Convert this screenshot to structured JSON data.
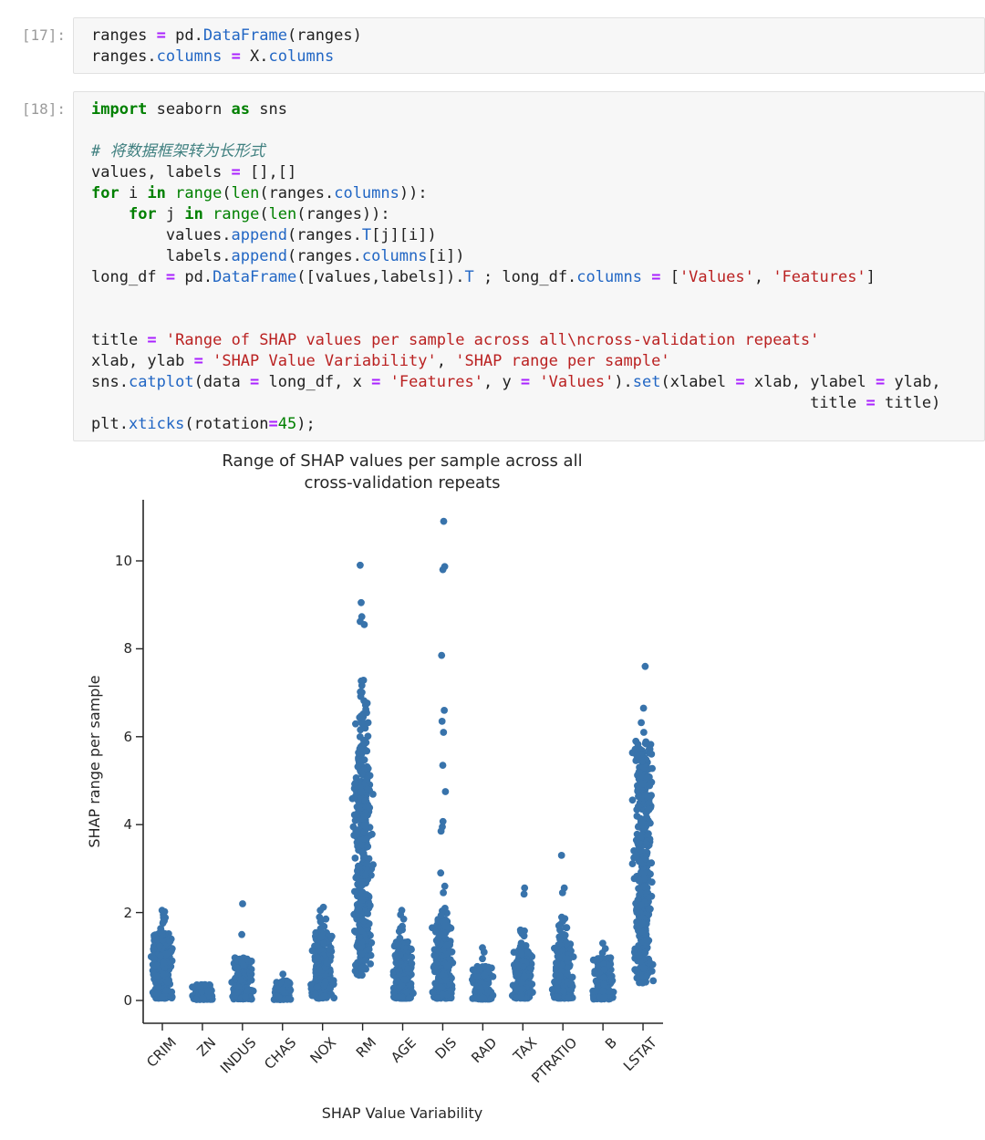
{
  "cells": [
    {
      "prompt": "[17]:",
      "lines": [
        [
          [
            "t",
            "ranges "
          ],
          [
            "o",
            "="
          ],
          [
            "t",
            " pd."
          ],
          [
            "p",
            "DataFrame"
          ],
          [
            "t",
            "(ranges)"
          ]
        ],
        [
          [
            "t",
            "ranges."
          ],
          [
            "p",
            "columns"
          ],
          [
            "t",
            " "
          ],
          [
            "o",
            "="
          ],
          [
            "t",
            " X."
          ],
          [
            "p",
            "columns"
          ]
        ]
      ]
    },
    {
      "prompt": "[18]:",
      "lines": [
        [
          [
            "k",
            "import"
          ],
          [
            "t",
            " seaborn "
          ],
          [
            "k",
            "as"
          ],
          [
            "t",
            " sns"
          ]
        ],
        [],
        [
          [
            "c",
            "# 将数据框架转为长形式"
          ]
        ],
        [
          [
            "t",
            "values, labels "
          ],
          [
            "o",
            "="
          ],
          [
            "t",
            " [],[]"
          ]
        ],
        [
          [
            "k",
            "for"
          ],
          [
            "t",
            " i "
          ],
          [
            "k",
            "in"
          ],
          [
            "t",
            " "
          ],
          [
            "b",
            "range"
          ],
          [
            "t",
            "("
          ],
          [
            "b",
            "len"
          ],
          [
            "t",
            "(ranges."
          ],
          [
            "p",
            "columns"
          ],
          [
            "t",
            ")):"
          ]
        ],
        [
          [
            "t",
            "    "
          ],
          [
            "k",
            "for"
          ],
          [
            "t",
            " j "
          ],
          [
            "k",
            "in"
          ],
          [
            "t",
            " "
          ],
          [
            "b",
            "range"
          ],
          [
            "t",
            "("
          ],
          [
            "b",
            "len"
          ],
          [
            "t",
            "(ranges)):"
          ]
        ],
        [
          [
            "t",
            "        values."
          ],
          [
            "p",
            "append"
          ],
          [
            "t",
            "(ranges."
          ],
          [
            "p",
            "T"
          ],
          [
            "t",
            "[j][i])"
          ]
        ],
        [
          [
            "t",
            "        labels."
          ],
          [
            "p",
            "append"
          ],
          [
            "t",
            "(ranges."
          ],
          [
            "p",
            "columns"
          ],
          [
            "t",
            "[i])"
          ]
        ],
        [
          [
            "t",
            "long_df "
          ],
          [
            "o",
            "="
          ],
          [
            "t",
            " pd."
          ],
          [
            "p",
            "DataFrame"
          ],
          [
            "t",
            "([values,labels])."
          ],
          [
            "p",
            "T"
          ],
          [
            "t",
            " ; long_df."
          ],
          [
            "p",
            "columns"
          ],
          [
            "t",
            " "
          ],
          [
            "o",
            "="
          ],
          [
            "t",
            " ["
          ],
          [
            "s",
            "'Values'"
          ],
          [
            "t",
            ", "
          ],
          [
            "s",
            "'Features'"
          ],
          [
            "t",
            "]"
          ]
        ],
        [],
        [],
        [
          [
            "t",
            "title "
          ],
          [
            "o",
            "="
          ],
          [
            "t",
            " "
          ],
          [
            "s",
            "'Range of SHAP values per sample across all\\ncross-validation repeats'"
          ]
        ],
        [
          [
            "t",
            "xlab, ylab "
          ],
          [
            "o",
            "="
          ],
          [
            "t",
            " "
          ],
          [
            "s",
            "'SHAP Value Variability'"
          ],
          [
            "t",
            ", "
          ],
          [
            "s",
            "'SHAP range per sample'"
          ]
        ],
        [
          [
            "t",
            "sns."
          ],
          [
            "p",
            "catplot"
          ],
          [
            "t",
            "(data "
          ],
          [
            "o",
            "="
          ],
          [
            "t",
            " long_df, x "
          ],
          [
            "o",
            "="
          ],
          [
            "t",
            " "
          ],
          [
            "s",
            "'Features'"
          ],
          [
            "t",
            ", y "
          ],
          [
            "o",
            "="
          ],
          [
            "t",
            " "
          ],
          [
            "s",
            "'Values'"
          ],
          [
            "t",
            ")."
          ],
          [
            "p",
            "set"
          ],
          [
            "t",
            "(xlabel "
          ],
          [
            "o",
            "="
          ],
          [
            "t",
            " xlab, ylabel "
          ],
          [
            "o",
            "="
          ],
          [
            "t",
            " ylab,"
          ]
        ],
        [
          [
            "t",
            "                                                                             title "
          ],
          [
            "o",
            "="
          ],
          [
            "t",
            " title)"
          ]
        ],
        [
          [
            "t",
            "plt."
          ],
          [
            "p",
            "xticks"
          ],
          [
            "t",
            "(rotation"
          ],
          [
            "o",
            "="
          ],
          [
            "n",
            "45"
          ],
          [
            "t",
            ");"
          ]
        ]
      ]
    }
  ],
  "chart_data": {
    "type": "strip",
    "title": "Range of SHAP values per sample across all\ncross-validation repeats",
    "title_lines": [
      "Range of SHAP values per sample across all",
      "cross-validation repeats"
    ],
    "xlabel": "SHAP Value Variability",
    "ylabel": "SHAP range per sample",
    "ylim": [
      -0.55,
      11.45
    ],
    "yticks": [
      0,
      2,
      4,
      6,
      8,
      10
    ],
    "grid": false,
    "legend": "none",
    "dot_color": "#3873ab",
    "axis_color": "#262626",
    "categories": [
      {
        "label": "CRIM",
        "min": 0.05,
        "max": 2.05,
        "clusters": [
          {
            "lo": 0.05,
            "hi": 1.55,
            "n": 320,
            "pw": 1.5,
            "jit": 11
          },
          {
            "lo": 1.55,
            "hi": 1.9,
            "n": 7,
            "pw": 1,
            "jit": 5
          }
        ],
        "outliers": [
          1.95,
          2.02,
          2.05
        ]
      },
      {
        "label": "ZN",
        "min": 0.02,
        "max": 0.36,
        "clusters": [
          {
            "lo": 0.02,
            "hi": 0.36,
            "n": 140,
            "pw": 1.4,
            "jit": 10
          }
        ],
        "outliers": []
      },
      {
        "label": "INDUS",
        "min": 0.03,
        "max": 2.2,
        "clusters": [
          {
            "lo": 0.03,
            "hi": 0.97,
            "n": 240,
            "pw": 1.4,
            "jit": 11
          }
        ],
        "outliers": [
          1.5,
          2.2
        ]
      },
      {
        "label": "CHAS",
        "min": 0.02,
        "max": 0.6,
        "clusters": [
          {
            "lo": 0.02,
            "hi": 0.45,
            "n": 120,
            "pw": 1.4,
            "jit": 9
          }
        ],
        "outliers": [
          0.6
        ]
      },
      {
        "label": "NOX",
        "min": 0.05,
        "max": 2.12,
        "clusters": [
          {
            "lo": 0.05,
            "hi": 1.55,
            "n": 300,
            "pw": 1.4,
            "jit": 11
          },
          {
            "lo": 1.6,
            "hi": 1.95,
            "n": 6,
            "pw": 1,
            "jit": 5
          }
        ],
        "outliers": [
          2.05,
          2.12
        ]
      },
      {
        "label": "RM",
        "min": 0.55,
        "max": 9.9,
        "clusters": [
          {
            "lo": 0.55,
            "hi": 5.6,
            "n": 380,
            "pw": 1.05,
            "jit": 10
          },
          {
            "lo": 5.6,
            "hi": 7.3,
            "n": 38,
            "pw": 1,
            "jit": 7
          }
        ],
        "outliers": [
          8.55,
          8.62,
          8.73,
          9.05,
          9.9
        ]
      },
      {
        "label": "AGE",
        "min": 0.05,
        "max": 2.05,
        "clusters": [
          {
            "lo": 0.05,
            "hi": 1.35,
            "n": 280,
            "pw": 1.5,
            "jit": 10
          },
          {
            "lo": 1.4,
            "hi": 1.7,
            "n": 5,
            "pw": 1,
            "jit": 4
          }
        ],
        "outliers": [
          1.85,
          1.95,
          2.05
        ]
      },
      {
        "label": "DIS",
        "min": 0.05,
        "max": 10.9,
        "clusters": [
          {
            "lo": 0.05,
            "hi": 1.85,
            "n": 300,
            "pw": 1.4,
            "jit": 10
          },
          {
            "lo": 1.9,
            "hi": 2.15,
            "n": 5,
            "pw": 1,
            "jit": 4
          }
        ],
        "outliers": [
          2.45,
          2.6,
          2.9,
          3.85,
          3.95,
          4.07,
          4.75,
          5.35,
          6.1,
          6.35,
          6.6,
          7.85,
          9.8,
          9.87,
          10.9
        ]
      },
      {
        "label": "RAD",
        "min": 0.03,
        "max": 1.2,
        "clusters": [
          {
            "lo": 0.03,
            "hi": 0.78,
            "n": 170,
            "pw": 1.4,
            "jit": 10
          }
        ],
        "outliers": [
          0.95,
          1.1,
          1.2
        ]
      },
      {
        "label": "TAX",
        "min": 0.05,
        "max": 2.56,
        "clusters": [
          {
            "lo": 0.05,
            "hi": 1.15,
            "n": 260,
            "pw": 1.4,
            "jit": 10
          },
          {
            "lo": 1.2,
            "hi": 1.62,
            "n": 9,
            "pw": 1,
            "jit": 5
          }
        ],
        "outliers": [
          2.42,
          2.56
        ]
      },
      {
        "label": "PTRATIO",
        "min": 0.05,
        "max": 3.3,
        "clusters": [
          {
            "lo": 0.05,
            "hi": 1.3,
            "n": 270,
            "pw": 1.4,
            "jit": 10
          },
          {
            "lo": 1.3,
            "hi": 1.9,
            "n": 16,
            "pw": 1,
            "jit": 6
          }
        ],
        "outliers": [
          2.45,
          2.56,
          3.3
        ]
      },
      {
        "label": "B",
        "min": 0.03,
        "max": 1.3,
        "clusters": [
          {
            "lo": 0.03,
            "hi": 0.97,
            "n": 230,
            "pw": 1.4,
            "jit": 10
          }
        ],
        "outliers": [
          1.08,
          1.18,
          1.3
        ]
      },
      {
        "label": "LSTAT",
        "min": 0.4,
        "max": 7.6,
        "clusters": [
          {
            "lo": 0.4,
            "hi": 5.9,
            "n": 400,
            "pw": 1.05,
            "jit": 10
          }
        ],
        "outliers": [
          6.1,
          6.32,
          6.65,
          7.6
        ]
      }
    ]
  }
}
